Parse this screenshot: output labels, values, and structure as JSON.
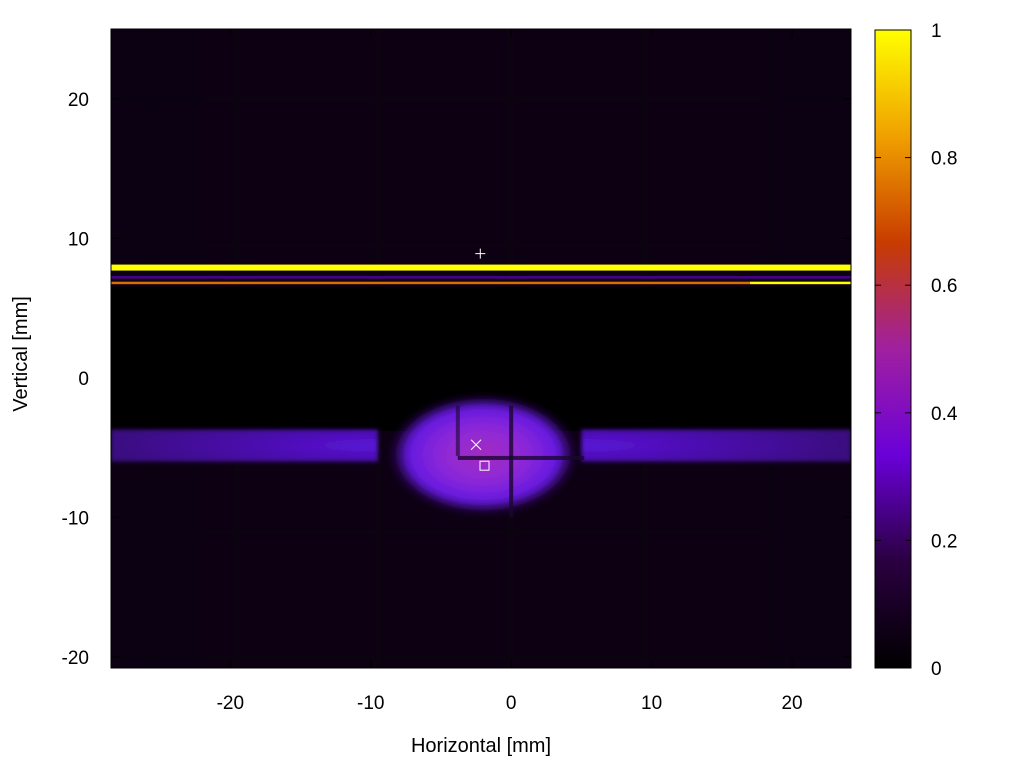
{
  "chart_data": {
    "type": "heatmap",
    "title": "",
    "xlabel": "Horizontal [mm]",
    "ylabel": "Vertical [mm]",
    "xlim": [
      -28.5,
      24.2
    ],
    "ylim": [
      -20.8,
      25
    ],
    "x_ticks": [
      -20,
      -10,
      0,
      10,
      20
    ],
    "y_ticks": [
      -20,
      -10,
      0,
      10,
      20
    ],
    "grid": false,
    "colorbar": {
      "range": [
        0,
        1
      ],
      "ticks": [
        0,
        0.2,
        0.4,
        0.6,
        0.8,
        1
      ],
      "tick_labels": [
        "0",
        "0.2",
        "0.4",
        "0.6",
        "0.8",
        "1"
      ],
      "colors": [
        "#000000",
        "#2a0040",
        "#6a00d8",
        "#a020a0",
        "#c83c00",
        "#f0a000",
        "#ffff00"
      ]
    },
    "features": {
      "background_level": 0.05,
      "mesh_x": [
        -25.5,
        -19.5,
        -9.5,
        0,
        9.5,
        18.5
      ],
      "mesh_y": [
        20,
        9.5,
        -11,
        -20
      ],
      "bright_lines": [
        {
          "y": 7.9,
          "x_from": -28.5,
          "x_to": 24.2,
          "value": 1.0
        },
        {
          "y": 7.2,
          "x_from": -28.5,
          "x_to": 24.2,
          "value": 0.25
        },
        {
          "y": 6.8,
          "x_from": -28.5,
          "x_to": 17.0,
          "value": 0.75
        },
        {
          "y": 6.8,
          "x_from": 17.0,
          "x_to": 24.2,
          "value": 1.0
        }
      ],
      "shadow_band": {
        "y_from": -3.8,
        "y_to": 6.5
      },
      "beam": {
        "x_center": -2.0,
        "y_center": -5.5,
        "peak": 0.42,
        "band_y": [
          -6,
          -3.7
        ],
        "band_value": 0.28
      }
    },
    "markers": [
      {
        "symbol": "+",
        "x": -2.2,
        "y": 8.9
      },
      {
        "symbol": "×",
        "x": -2.5,
        "y": -4.8
      },
      {
        "symbol": "□",
        "x": -1.9,
        "y": -6.3
      }
    ]
  }
}
